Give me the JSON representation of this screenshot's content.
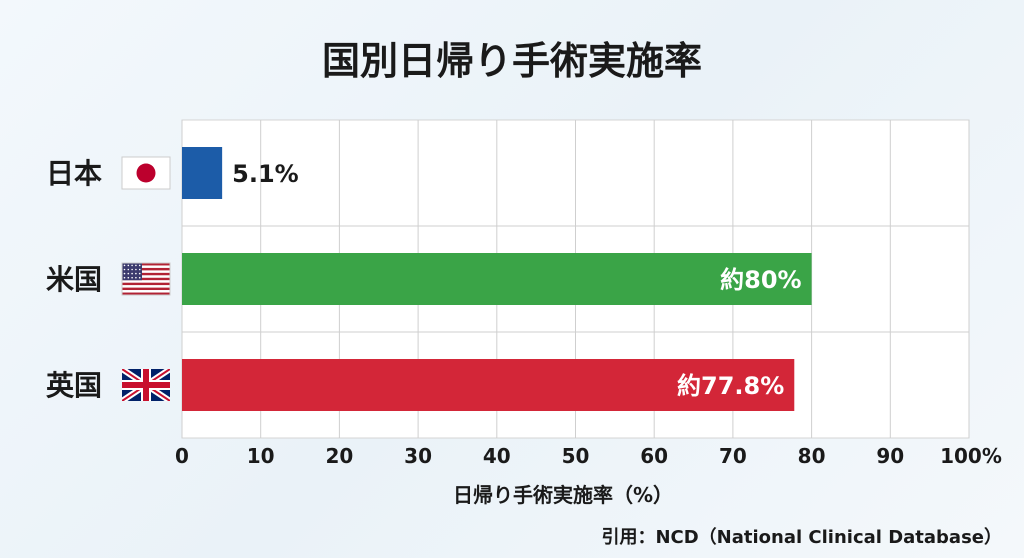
{
  "chart_data": {
    "type": "bar",
    "orientation": "horizontal",
    "title": "国別日帰り手術実施率",
    "xlabel": "日帰り手術実施率（%）",
    "ylabel": "",
    "xlim": [
      0,
      100
    ],
    "ticks": [
      "0",
      "10",
      "20",
      "30",
      "40",
      "50",
      "60",
      "70",
      "80",
      "90",
      "100%"
    ],
    "categories": [
      "日本",
      "米国",
      "英国"
    ],
    "values": [
      5.1,
      80,
      77.8
    ],
    "data_labels": [
      "5.1%",
      "約80%",
      "約77.8%"
    ],
    "colors": [
      "#1c5ca8",
      "#3aa447",
      "#d32638"
    ],
    "flags": [
      "japan-flag",
      "usa-flag",
      "uk-flag"
    ],
    "grid": true
  },
  "source": "引用：NCD（National Clinical Database）"
}
